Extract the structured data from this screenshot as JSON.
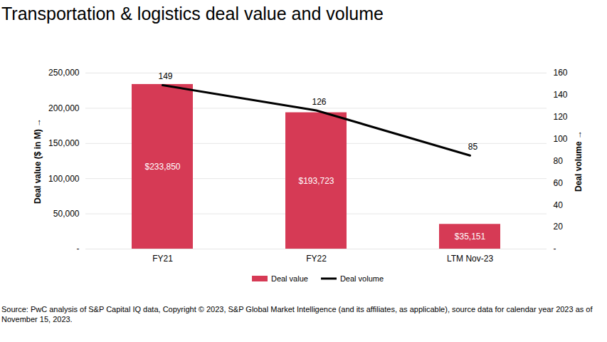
{
  "chart_data": {
    "type": "bar",
    "title": "Transportation & logistics deal value and volume",
    "categories": [
      "FY21",
      "FY22",
      "LTM Nov-23"
    ],
    "series": [
      {
        "name": "Deal value",
        "type": "bar",
        "color": "#d63a55",
        "values": [
          233850,
          193723,
          35151
        ],
        "value_labels": [
          "$233,850",
          "$193,723",
          "$35,151"
        ]
      },
      {
        "name": "Deal volume",
        "type": "line",
        "color": "#000000",
        "axis": "y2",
        "values": [
          149,
          126,
          85
        ]
      }
    ],
    "ylabel": "Deal value ($ in M)",
    "y2label": "Deal volume",
    "ylim": [
      0,
      250000
    ],
    "yticks": [
      {
        "value": 0,
        "label": "-"
      },
      {
        "value": 50000,
        "label": "50,000"
      },
      {
        "value": 100000,
        "label": "100,000"
      },
      {
        "value": 150000,
        "label": "150,000"
      },
      {
        "value": 200000,
        "label": "200,000"
      },
      {
        "value": 250000,
        "label": "250,000"
      }
    ],
    "y2lim": [
      0,
      160
    ],
    "y2ticks": [
      {
        "value": 0,
        "label": "-"
      },
      20,
      40,
      60,
      80,
      100,
      120,
      140,
      160
    ],
    "grid": true,
    "data_labels": true,
    "legend": "bottom",
    "source": "Source: PwC analysis of S&P Capital IQ data, Copyright © 2023, S&P Global Market Intelligence (and its affiliates, as applicable), source data for calendar year 2023 as of November 15, 2023."
  }
}
